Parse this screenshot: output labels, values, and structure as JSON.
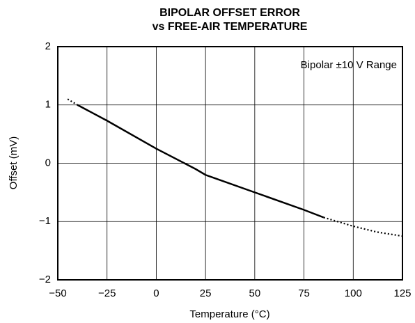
{
  "chart_data": {
    "type": "line",
    "title": [
      "BIPOLAR OFFSET ERROR",
      "vs FREE-AIR TEMPERATURE"
    ],
    "x_label": "Temperature (°C)",
    "y_label": "Offset (mV)",
    "annotation": "Bipolar ±10 V Range",
    "x": [
      -45,
      -40,
      -25,
      0,
      20,
      25,
      50,
      75,
      85,
      100,
      112,
      125
    ],
    "series": [
      {
        "color": "#000000",
        "line_style": "solid",
        "values": [
          null,
          1.0,
          0.73,
          0.25,
          -0.1,
          -0.2,
          -0.5,
          -0.8,
          -0.93,
          null,
          null,
          null
        ]
      },
      {
        "color": "#000000",
        "line_style": "dotted",
        "values": [
          1.1,
          1.0,
          null,
          null,
          null,
          null,
          null,
          null,
          -0.93,
          -1.08,
          -1.18,
          -1.25
        ]
      }
    ],
    "xlim": [
      -50,
      125
    ],
    "xticks": [
      {
        "value": -50,
        "label": "−50"
      },
      {
        "value": -25,
        "label": "−25"
      },
      0,
      25,
      50,
      75,
      100,
      125
    ],
    "ylim": [
      -2,
      2
    ],
    "yticks": [
      {
        "value": -2,
        "label": "−2"
      },
      {
        "value": -1,
        "label": "−1"
      },
      0,
      1,
      2
    ],
    "grid": true
  }
}
